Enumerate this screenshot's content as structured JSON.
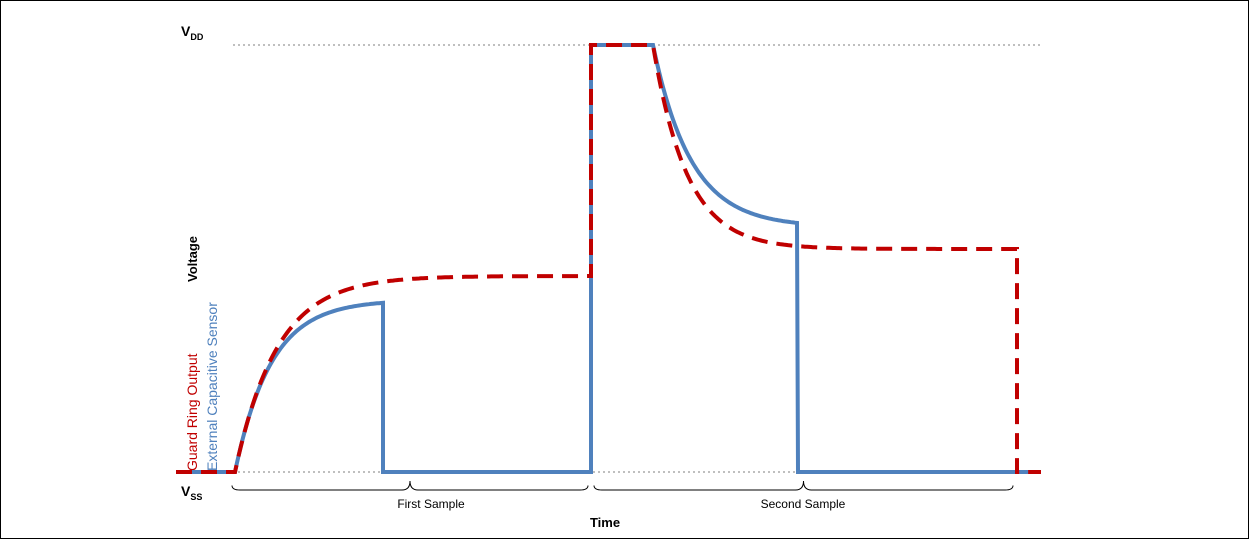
{
  "chart_data": {
    "type": "line",
    "xlabel": "Time",
    "ylabel": "Voltage",
    "y_levels": [
      {
        "name": "VDD",
        "base": "V",
        "sub": "DD"
      },
      {
        "name": "VSS",
        "base": "V",
        "sub": "SS"
      }
    ],
    "intervals": [
      {
        "label": "First Sample"
      },
      {
        "label": "Second Sample"
      }
    ],
    "grid": false,
    "colors": {
      "external_capacitive_sensor": "#4F81BD",
      "guard_ring_output": "#C00000"
    },
    "series": [
      {
        "name": "Guard Ring Output",
        "color": "#C00000",
        "style": "dashed"
      },
      {
        "name": "External Capacitive Sensor",
        "color": "#4F81BD",
        "style": "solid"
      }
    ]
  }
}
